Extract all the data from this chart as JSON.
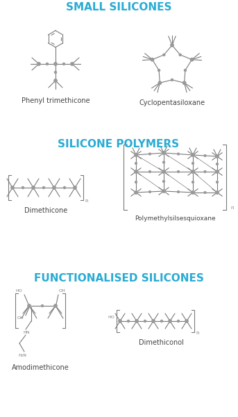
{
  "title1": "SMALL SILICONES",
  "title2": "SILICONE POLYMERS",
  "title3": "FUNCTIONALISED SILICONES",
  "label_phenyl": "Phenyl trimethicone",
  "label_cyclo": "Cyclopentasiloxane",
  "label_dimethicone": "Dimethicone",
  "label_pmq": "Polymethylsilsesquioxane",
  "label_amodi": "Amodimethicone",
  "label_dimethiconol": "Dimethiconol",
  "title_color": "#29ABD4",
  "structure_color": "#7a7a7a",
  "label_color": "#444444",
  "bg_color": "#ffffff",
  "title_fontsize": 11,
  "label_fontsize": 7,
  "small_fontsize": 4.5,
  "n_fontsize": 5
}
